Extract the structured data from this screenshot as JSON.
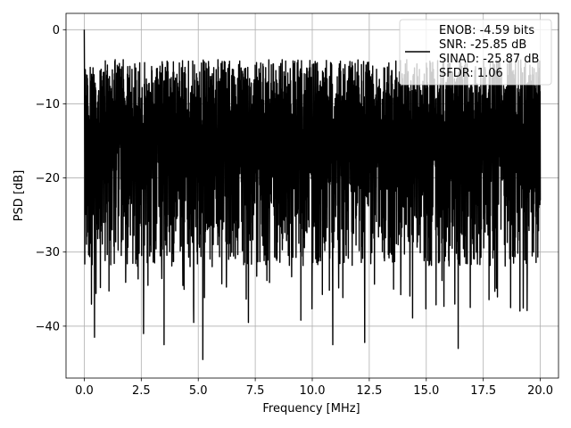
{
  "chart_data": {
    "type": "line",
    "title": "",
    "xlabel": "Frequency [MHz]",
    "ylabel": "PSD [dB]",
    "xlim": [
      -0.8,
      20.8
    ],
    "ylim": [
      -47,
      2.2
    ],
    "grid": true,
    "legend_position": "top-right",
    "x_ticks": [
      0.0,
      2.5,
      5.0,
      7.5,
      10.0,
      12.5,
      15.0,
      17.5,
      20.0
    ],
    "x_tick_labels": [
      "0.0",
      "2.5",
      "5.0",
      "7.5",
      "10.0",
      "12.5",
      "15.0",
      "17.5",
      "20.0"
    ],
    "y_ticks": [
      0,
      -10,
      -20,
      -30,
      -40
    ],
    "y_tick_labels": [
      "0",
      "−10",
      "−20",
      "−30",
      "−40"
    ],
    "legend_lines": [
      "ENOB: -4.59 bits",
      "SNR: -25.85 dB",
      "SINAD: -25.87 dB",
      "SFDR: 1.06"
    ],
    "series": [
      {
        "color": "#000000",
        "x_range": [
          0,
          20
        ],
        "peak": {
          "x": 0.0,
          "y": 0.0
        },
        "envelope_upper_approx": -4,
        "envelope_lower_typical": -32,
        "deep_dips": [
          {
            "x": 0.45,
            "y": -41.5
          },
          {
            "x": 2.6,
            "y": -41.0
          },
          {
            "x": 3.5,
            "y": -42.5
          },
          {
            "x": 4.8,
            "y": -39.5
          },
          {
            "x": 5.2,
            "y": -44.5
          },
          {
            "x": 7.2,
            "y": -39.5
          },
          {
            "x": 9.5,
            "y": -39.2
          },
          {
            "x": 10.9,
            "y": -42.5
          },
          {
            "x": 12.3,
            "y": -42.2
          },
          {
            "x": 14.4,
            "y": -38.9
          },
          {
            "x": 16.4,
            "y": -43.0
          },
          {
            "x": 18.7,
            "y": -37.5
          }
        ]
      }
    ]
  }
}
